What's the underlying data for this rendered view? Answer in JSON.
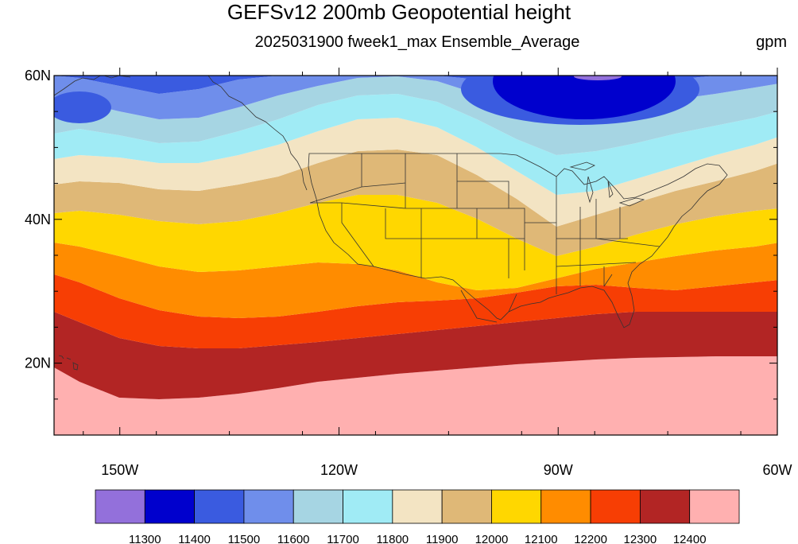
{
  "title": "GEFSv12 200mb Geopotential height",
  "subtitle": "2025031900 fweek1_max Ensemble_Average",
  "units": "gpm",
  "lat_ticks": [
    {
      "label": "60N",
      "lat": 60
    },
    {
      "label": "40N",
      "lat": 40
    },
    {
      "label": "20N",
      "lat": 20
    }
  ],
  "lon_ticks": [
    {
      "label": "150W",
      "lon": -150
    },
    {
      "label": "120W",
      "lon": -120
    },
    {
      "label": "90W",
      "lon": -90
    },
    {
      "label": "60W",
      "lon": -60
    }
  ],
  "colorbar": {
    "colors": [
      "#9370DB",
      "#0000CD",
      "#3A5BE0",
      "#6F8EEB",
      "#A6D5E3",
      "#A0EBF5",
      "#F3E4C3",
      "#DFB877",
      "#FFD700",
      "#FF8C00",
      "#F73E04",
      "#B22524",
      "#FFB0B0"
    ],
    "labels": [
      "11300",
      "11400",
      "11500",
      "11600",
      "11700",
      "11800",
      "11900",
      "12000",
      "12100",
      "12200",
      "12300",
      "12400"
    ]
  },
  "map": {
    "lon_range": [
      -159,
      -60
    ],
    "lat_range": [
      10,
      60
    ],
    "contour_bands": [
      {
        "level": "12400+",
        "color": "#FFB0B0"
      },
      {
        "level": "12300-12400",
        "color": "#B22524"
      },
      {
        "level": "12200-12300",
        "color": "#F73E04"
      },
      {
        "level": "12100-12200",
        "color": "#FF8C00"
      },
      {
        "level": "12000-12100",
        "color": "#FFD700"
      },
      {
        "level": "11900-12000",
        "color": "#DFB877"
      },
      {
        "level": "11800-11900",
        "color": "#F3E4C3"
      },
      {
        "level": "11700-11800",
        "color": "#A0EBF5"
      },
      {
        "level": "11600-11700",
        "color": "#A6D5E3"
      },
      {
        "level": "11500-11600",
        "color": "#6F8EEB"
      },
      {
        "level": "11400-11500",
        "color": "#3A5BE0"
      },
      {
        "level": "11300-11400",
        "color": "#0000CD"
      },
      {
        "level": "<11300",
        "color": "#9370DB"
      }
    ]
  }
}
